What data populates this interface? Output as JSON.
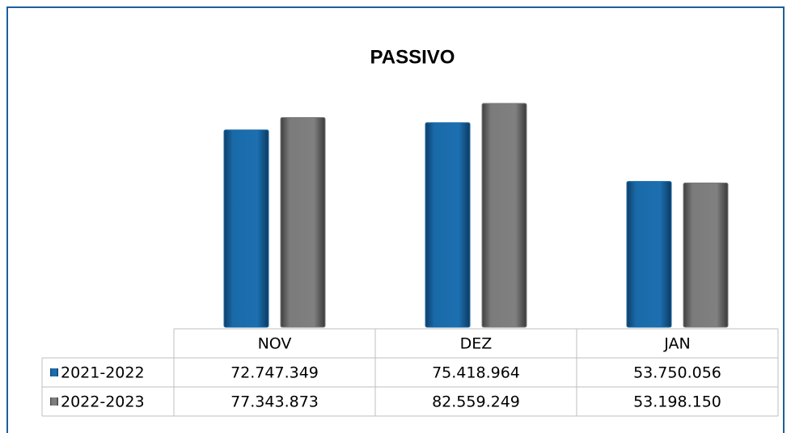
{
  "chart_data": {
    "type": "bar",
    "title": "PASSIVO",
    "categories": [
      "NOV",
      "DEZ",
      "JAN"
    ],
    "series": [
      {
        "name": "2021-2022",
        "color": "#1a68a6",
        "values": [
          72747349,
          75418964,
          53750056
        ],
        "value_labels": [
          "72.747.349",
          "75.418.964",
          "53.750.056"
        ]
      },
      {
        "name": "2022-2023",
        "color": "#7b7b7b",
        "values": [
          77343873,
          82559249,
          53198150
        ],
        "value_labels": [
          "77.343.873",
          "82.559.249",
          "53.198.150"
        ]
      }
    ],
    "ylim": [
      0,
      90000000
    ]
  }
}
